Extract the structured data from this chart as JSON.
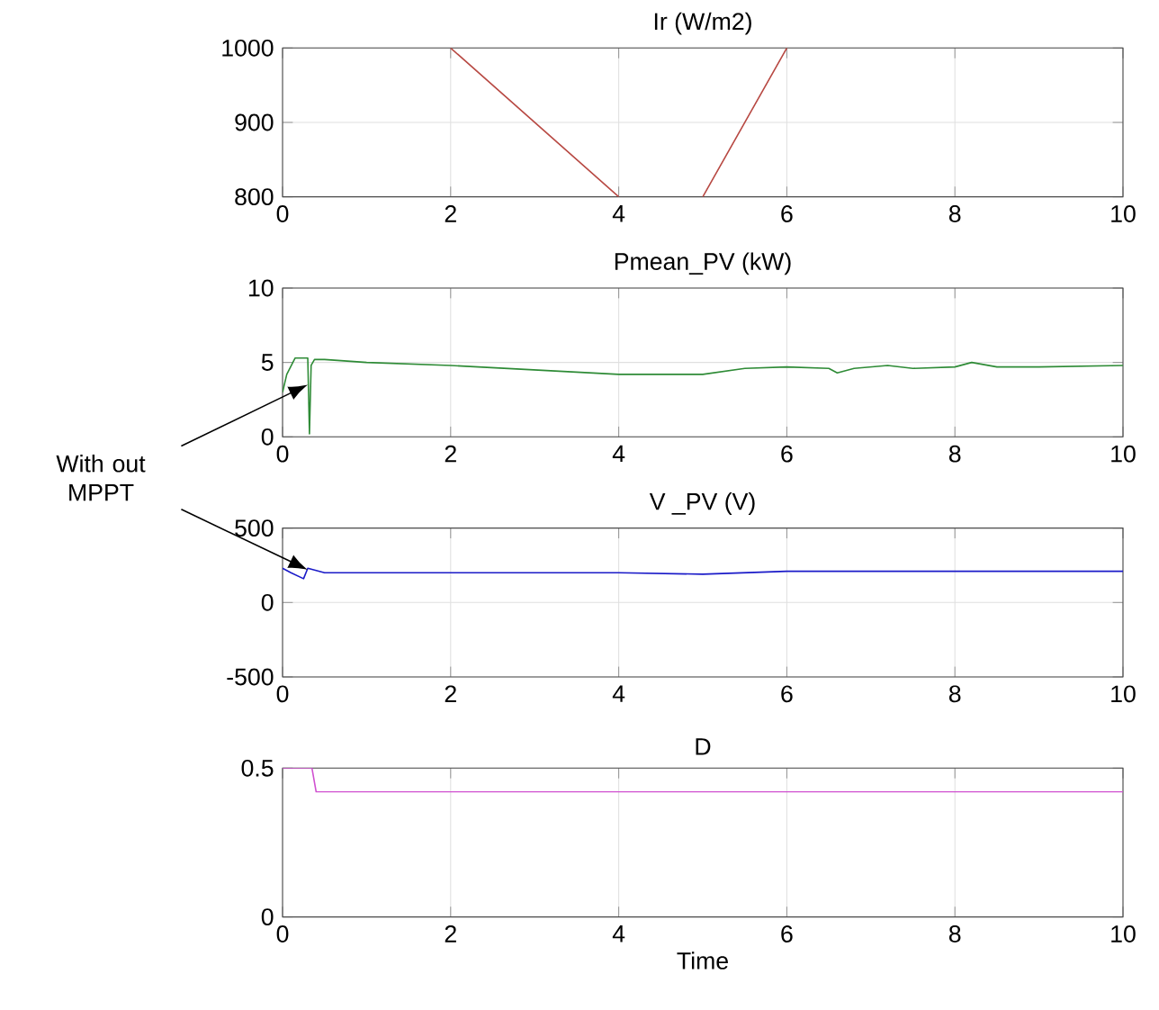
{
  "chart_data": [
    {
      "type": "line",
      "title": "Ir (W/m2)",
      "xlim": [
        0,
        10
      ],
      "xticks": [
        0,
        2,
        4,
        6,
        8,
        10
      ],
      "ylim": [
        800,
        1000
      ],
      "yticks": [
        800,
        900,
        1000
      ],
      "grid": true,
      "series": [
        {
          "color": "#b84a44",
          "x": [
            2,
            4,
            4.5,
            5,
            6
          ],
          "values": [
            1000,
            800,
            null,
            800,
            1000
          ]
        }
      ]
    },
    {
      "type": "line",
      "title": "Pmean_PV (kW)",
      "xlim": [
        0,
        10
      ],
      "xticks": [
        0,
        2,
        4,
        6,
        8,
        10
      ],
      "ylim": [
        0,
        10
      ],
      "yticks": [
        0,
        5,
        10
      ],
      "grid": true,
      "annotations": [
        "With out MPPT"
      ],
      "series": [
        {
          "color": "#2e8b36",
          "x": [
            0,
            0.05,
            0.15,
            0.3,
            0.32,
            0.34,
            0.38,
            0.5,
            1,
            2,
            3,
            4,
            5,
            5.5,
            6,
            6.5,
            6.6,
            6.8,
            7.2,
            7.5,
            8,
            8.2,
            8.5,
            9,
            10
          ],
          "values": [
            3,
            4.2,
            5.3,
            5.3,
            0.2,
            4.8,
            5.2,
            5.2,
            5.0,
            4.8,
            4.5,
            4.2,
            4.2,
            4.6,
            4.7,
            4.6,
            4.3,
            4.6,
            4.8,
            4.6,
            4.7,
            5.0,
            4.7,
            4.7,
            4.8
          ]
        }
      ]
    },
    {
      "type": "line",
      "title": "V _PV (V)",
      "xlim": [
        0,
        10
      ],
      "xticks": [
        0,
        2,
        4,
        6,
        8,
        10
      ],
      "ylim": [
        -500,
        500
      ],
      "yticks": [
        -500,
        0,
        500
      ],
      "grid": true,
      "series": [
        {
          "color": "#1a1ac8",
          "x": [
            0,
            0.1,
            0.25,
            0.3,
            0.5,
            1,
            2,
            4,
            5,
            6,
            8,
            10
          ],
          "values": [
            230,
            200,
            160,
            230,
            200,
            200,
            200,
            200,
            190,
            210,
            210,
            210
          ]
        }
      ]
    },
    {
      "type": "line",
      "title": "D",
      "xlabel": "Time",
      "xlim": [
        0,
        10
      ],
      "xticks": [
        0,
        2,
        4,
        6,
        8,
        10
      ],
      "ylim": [
        0,
        0.5
      ],
      "yticks": [
        0,
        0.5
      ],
      "grid": true,
      "series": [
        {
          "color": "#d050d0",
          "x": [
            0,
            0.35,
            0.4,
            10
          ],
          "values": [
            0.5,
            0.5,
            0.42,
            0.42
          ]
        }
      ]
    }
  ]
}
